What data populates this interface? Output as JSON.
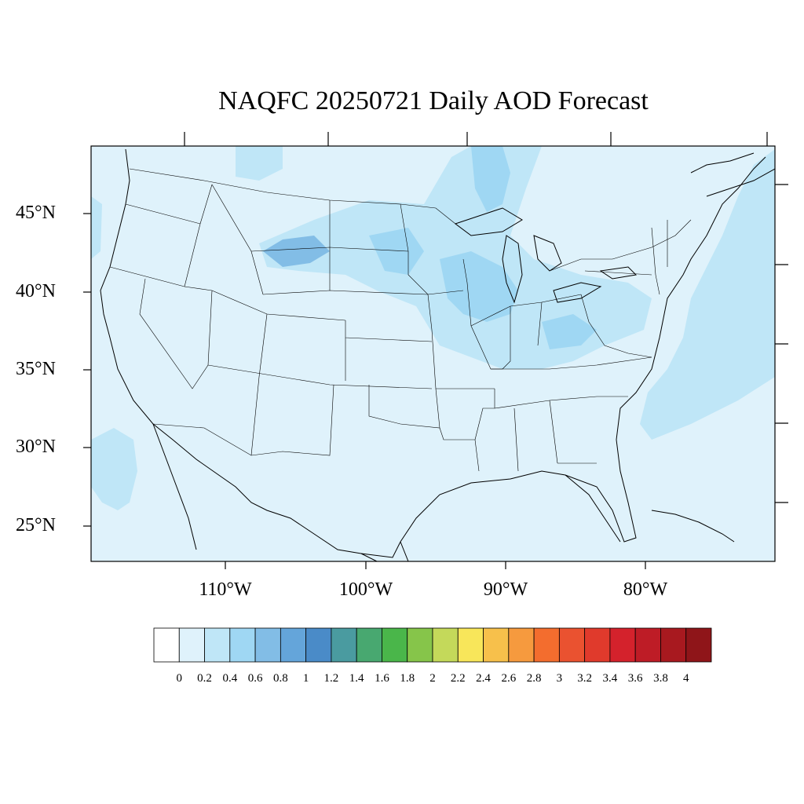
{
  "title": "NAQFC 20250721 Daily AOD Forecast",
  "lat_labels": [
    "45°N",
    "40°N",
    "35°N",
    "30°N",
    "25°N"
  ],
  "lon_labels": [
    "110°W",
    "100°W",
    "90°W",
    "80°W"
  ],
  "colorbar": {
    "labels": [
      "0",
      "0.2",
      "0.4",
      "0.6",
      "0.8",
      "1",
      "1.2",
      "1.4",
      "1.6",
      "1.8",
      "2",
      "2.2",
      "2.4",
      "2.6",
      "2.8",
      "3",
      "3.2",
      "3.4",
      "3.6",
      "3.8",
      "4"
    ],
    "colors": [
      "#ffffff",
      "#dff2fb",
      "#bfe6f7",
      "#9fd7f3",
      "#82bde6",
      "#64a5da",
      "#4a8bc8",
      "#4a9ba0",
      "#48a870",
      "#4ab64a",
      "#86c54a",
      "#c4d95a",
      "#f8e65a",
      "#f7c04b",
      "#f69a3e",
      "#f36d2e",
      "#ea5230",
      "#e03a2c",
      "#d4222c",
      "#be1c26",
      "#a8191f",
      "#8f1519"
    ]
  },
  "map_colors": {
    "base": "#dff2fb",
    "level1": "#bfe6f7",
    "level2": "#9fd7f3",
    "level3": "#82bde6"
  }
}
